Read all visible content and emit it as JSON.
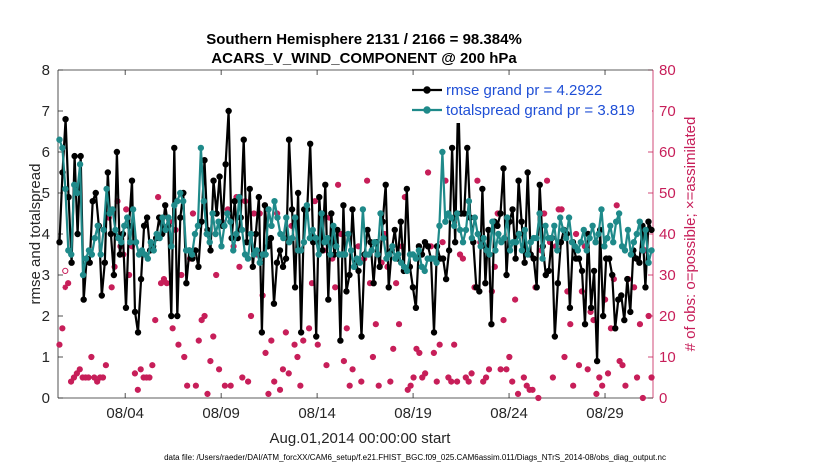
{
  "chart_data": {
    "type": "line",
    "title": "Southern Hemisphere 2131 / 2166 = 98.384%",
    "subtitle": "ACARS_V_WIND_COMPONENT @ 200 hPa",
    "xlabel": "Aug.01,2014 00:00:00 start",
    "ylabel": "rmse and totalspread",
    "y2label": "# of obs: o=possible; ×=assimilated",
    "footnote": "data file: /Users/raeder/DAI/ATM_forcXX/CAM6_setup/f.e21.FHIST_BGC.f09_025.CAM6assim.011/Diags_NTrS_2014-08/obs_diag_output.nc",
    "x_tick_labels": [
      "08/04",
      "08/09",
      "08/14",
      "08/19",
      "08/24",
      "08/29"
    ],
    "x_tick_values": [
      3.5,
      8.5,
      13.5,
      18.5,
      23.5,
      28.5
    ],
    "xlim": [
      0,
      31
    ],
    "ylim": [
      0,
      8
    ],
    "y_ticks": [
      "0",
      "1",
      "2",
      "3",
      "4",
      "5",
      "6",
      "7",
      "8"
    ],
    "y2lim": [
      0,
      80
    ],
    "y2_ticks": [
      "0",
      "10",
      "20",
      "30",
      "40",
      "50",
      "60",
      "70",
      "80"
    ],
    "colors": {
      "rmse": "#000000",
      "spread": "#1f8a8a",
      "obs": "#c71e59",
      "legend_text": "#1f4fd6"
    },
    "legend_position": "top-right",
    "series": [
      {
        "name": "rmse grand pr = 4.2922",
        "values": [
          3.8,
          5.5,
          6.8,
          4.9,
          3.3,
          5.9,
          4.0,
          5.9,
          2.4,
          3.4,
          3.3,
          4.8,
          5.0,
          4.2,
          2.5,
          3.3,
          5.5,
          4.0,
          3.0,
          6.0,
          3.5,
          4.0,
          2.2,
          4.2,
          5.3,
          2.1,
          1.6,
          2.9,
          4.2,
          4.4,
          3.6,
          3.7,
          3.9,
          4.4,
          4.0,
          4.7,
          4.2,
          2.0,
          6.1,
          2.0,
          4.4,
          5.0,
          2.8,
          3.6,
          3.4,
          3.6,
          3.2,
          4.3,
          5.8,
          4.1,
          3.6,
          5.3,
          4.5,
          5.4,
          4.2,
          5.7,
          7.0,
          3.9,
          4.8,
          3.9,
          4.4,
          6.3,
          3.8,
          5.1,
          3.2,
          4.0,
          4.9,
          1.6,
          4.7,
          3.7,
          3.9,
          2.3,
          3.3,
          3.6,
          3.2,
          3.4,
          6.3,
          4.6,
          2.7,
          5.0,
          1.6,
          4.6,
          4.6,
          6.2,
          3.8,
          1.5,
          4.9,
          3.6,
          5.2,
          2.4,
          4.5,
          3.5,
          4.1,
          1.4,
          4.7,
          2.6,
          3.0,
          4.6,
          3.3,
          3.1,
          1.5,
          3.5,
          4.1,
          3.8,
          2.8,
          3.8,
          3.2,
          4.3,
          5.2,
          2.7,
          3.6,
          4.1,
          3.4,
          4.3,
          3.1,
          5.1,
          3.2,
          2.7,
          2.2,
          3.7,
          3.5,
          3.8,
          3.7,
          3.4,
          1.6,
          3.7,
          3.4,
          3.4,
          2.9,
          3.6,
          6.1,
          3.8,
          7.4,
          4.5,
          4.5,
          6.1,
          4.4,
          3.8,
          2.7,
          2.6,
          5.1,
          2.8,
          4.1,
          1.8,
          4.3,
          4.2,
          4.5,
          5.6,
          3.0,
          4.3,
          4.6,
          3.4,
          5.3,
          4.3,
          3.3,
          5.5,
          3.5,
          3.4,
          2.7,
          5.2,
          3.7,
          3.0,
          3.1,
          3.9,
          1.5,
          2.8,
          3.8,
          4.1,
          4.0,
          2.2,
          3.8,
          3.4,
          3.4,
          3.1,
          1.8,
          4.0,
          2.2,
          3.1,
          0.9,
          4.1,
          2.0,
          3.4,
          3.4,
          3.0,
          1.7,
          2.4,
          2.5,
          1.9,
          2.9,
          2.1,
          3.6,
          3.4,
          3.3,
          4.2,
          2.7,
          4.3,
          4.1
        ]
      },
      {
        "name": "totalspread grand pr = 3.819",
        "values": [
          6.3,
          6.1,
          5.1,
          3.6,
          3.5,
          5.2,
          5.0,
          5.7,
          3.0,
          3.4,
          3.6,
          3.5,
          3.9,
          4.2,
          3.5,
          4.1,
          5.1,
          4.5,
          4.6,
          4.1,
          3.9,
          3.8,
          4.2,
          4.4,
          3.8,
          4.6,
          3.8,
          3.5,
          3.6,
          3.5,
          3.4,
          3.8,
          3.6,
          4.0,
          3.9,
          4.4,
          4.1,
          4.4,
          3.7,
          4.7,
          4.8,
          5.0,
          4.8,
          3.6,
          3.6,
          3.5,
          4.0,
          4.2,
          6.1,
          4.8,
          4.0,
          3.8,
          4.5,
          4.0,
          4.3,
          3.7,
          4.2,
          4.5,
          4.3,
          3.6,
          4.0,
          4.9,
          4.1,
          3.5,
          3.4,
          4.0,
          3.5,
          3.6,
          3.3,
          3.5,
          3.5,
          4.6,
          4.2,
          4.8,
          4.4,
          4.0,
          3.9,
          4.4,
          3.8,
          3.9,
          4.4,
          3.6,
          3.6,
          3.8,
          4.7,
          3.9,
          4.1,
          3.9,
          3.5,
          4.5,
          3.8,
          3.9,
          3.5,
          4.2,
          3.7,
          3.5,
          3.5,
          3.5,
          4.0,
          3.6,
          3.2,
          3.4,
          3.3,
          4.6,
          3.5,
          3.5,
          3.6,
          3.8,
          3.5,
          4.5,
          3.9,
          3.4,
          3.5,
          3.7,
          3.4,
          3.5,
          3.3,
          3.2,
          3.1,
          3.5,
          3.5,
          3.4,
          3.6,
          3.2,
          3.1,
          3.4,
          3.4,
          3.4,
          3.3,
          4.2,
          6.0,
          4.3,
          4.5,
          4.4,
          4.2,
          4.5,
          4.1,
          3.8,
          4.1,
          4.8,
          3.9,
          4.4,
          4.0,
          3.7,
          3.9,
          3.6,
          3.5,
          4.3,
          3.6,
          4.0,
          3.8,
          3.9,
          4.4,
          3.6,
          3.8,
          3.8,
          4.0,
          3.6,
          4.1,
          3.5,
          3.8,
          3.9,
          3.9,
          4.5,
          3.4,
          4.2,
          3.9,
          3.9,
          4.2,
          3.6,
          4.4,
          4.1,
          3.9,
          4.4,
          3.8,
          3.7,
          3.6,
          3.8,
          4.1,
          3.6,
          3.9,
          4.2,
          3.8,
          4.0,
          4.6,
          3.7,
          3.9,
          4.2,
          3.8,
          4.3,
          4.5,
          3.7,
          3.6,
          4.1,
          3.5,
          3.8,
          4.0,
          4.3,
          3.6,
          4.1,
          3.3,
          3.6
        ]
      }
    ],
    "obs_possible": [
      13,
      17,
      31,
      28,
      4,
      5,
      6,
      7,
      5,
      5,
      5,
      10,
      5,
      4,
      5,
      5,
      8,
      44,
      27,
      32,
      48,
      37,
      35,
      46,
      30,
      37,
      6,
      2,
      7,
      5,
      5,
      5,
      8,
      19,
      49,
      28,
      29,
      28,
      43,
      17,
      41,
      13,
      30,
      10,
      3,
      34,
      45,
      3,
      14,
      19,
      20,
      1,
      9,
      15,
      30,
      7,
      43,
      3,
      46,
      3,
      37,
      49,
      32,
      5,
      48,
      4,
      20,
      45,
      35,
      45,
      25,
      11,
      1,
      14,
      4,
      45,
      2,
      7,
      16,
      6,
      42,
      13,
      10,
      3,
      14,
      46,
      17,
      28,
      48,
      13,
      40,
      36,
      8,
      44,
      34,
      27,
      52,
      40,
      9,
      17,
      3,
      7,
      33,
      37,
      4,
      34,
      53,
      28,
      10,
      18,
      3,
      33,
      40,
      32,
      4,
      12,
      28,
      18,
      37,
      49,
      2,
      3,
      5,
      12,
      11,
      5,
      6,
      55,
      37,
      11,
      4,
      13,
      38,
      53,
      5,
      4,
      13,
      4,
      35,
      34,
      5,
      4,
      6,
      27,
      53,
      38,
      4,
      5,
      7,
      26,
      32,
      45,
      7,
      19,
      7,
      10,
      4,
      24,
      1,
      71,
      5,
      3,
      2,
      2,
      27,
      0,
      36,
      45,
      53,
      38,
      5,
      37,
      46,
      46,
      10,
      26,
      18,
      3,
      40,
      8,
      26,
      37,
      7,
      21,
      19,
      1,
      5,
      3,
      24,
      6,
      17,
      29,
      47,
      9,
      8,
      3,
      29,
      71,
      27,
      5,
      18,
      0,
      36,
      20,
      5
    ],
    "obs_assimilated": [
      13,
      17,
      27,
      28,
      4,
      5,
      6,
      7,
      5,
      5,
      5,
      10,
      5,
      4,
      5,
      5,
      8,
      44,
      27,
      32,
      48,
      37,
      35,
      46,
      30,
      37,
      6,
      2,
      7,
      5,
      5,
      5,
      8,
      19,
      49,
      28,
      29,
      28,
      43,
      17,
      41,
      13,
      30,
      10,
      3,
      34,
      45,
      3,
      14,
      19,
      20,
      1,
      9,
      15,
      30,
      7,
      43,
      3,
      46,
      3,
      37,
      49,
      32,
      5,
      48,
      4,
      20,
      45,
      35,
      45,
      25,
      11,
      1,
      14,
      4,
      45,
      2,
      7,
      16,
      6,
      42,
      13,
      10,
      3,
      14,
      46,
      17,
      28,
      48,
      13,
      40,
      36,
      8,
      44,
      34,
      27,
      52,
      40,
      9,
      17,
      3,
      7,
      33,
      37,
      4,
      34,
      53,
      28,
      10,
      18,
      3,
      33,
      40,
      32,
      4,
      12,
      28,
      18,
      37,
      49,
      2,
      3,
      5,
      12,
      11,
      5,
      6,
      55,
      37,
      11,
      4,
      13,
      38,
      53,
      5,
      4,
      13,
      4,
      35,
      34,
      5,
      4,
      6,
      27,
      53,
      38,
      4,
      5,
      7,
      26,
      32,
      45,
      7,
      19,
      7,
      10,
      4,
      24,
      1,
      71,
      5,
      3,
      2,
      2,
      27,
      0,
      36,
      45,
      53,
      38,
      5,
      37,
      46,
      46,
      10,
      26,
      18,
      3,
      40,
      8,
      26,
      37,
      7,
      21,
      19,
      1,
      5,
      3,
      24,
      6,
      17,
      29,
      47,
      9,
      8,
      3,
      29,
      71,
      27,
      5,
      18,
      0,
      36,
      20,
      5
    ]
  }
}
